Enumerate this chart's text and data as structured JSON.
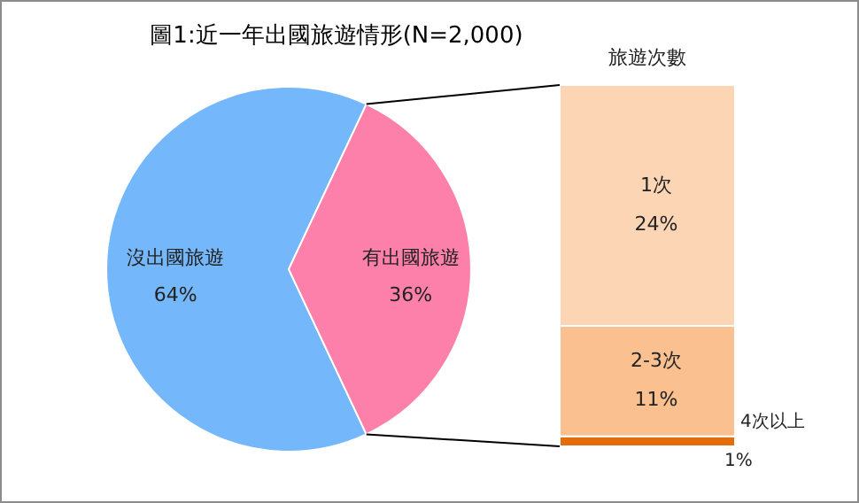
{
  "chart_data": [
    {
      "type": "pie",
      "title": "圖1:近一年出國旅遊情形(N=2,000)",
      "categories": [
        "沒出國旅遊",
        "有出國旅遊"
      ],
      "values": [
        64,
        36
      ],
      "colors": [
        "#75b7fb",
        "#fd80aa"
      ],
      "value_labels": [
        "64%",
        "36%"
      ]
    },
    {
      "type": "bar",
      "title": "旅遊次數",
      "stacked": true,
      "categories": [
        null
      ],
      "series": [
        {
          "name": "4次以上",
          "color": "#e46c0a",
          "values": [
            1
          ],
          "value_labels": [
            "1%"
          ]
        },
        {
          "name": "2-3次",
          "color": "#fac090",
          "values": [
            11
          ],
          "value_labels": [
            "11%"
          ]
        },
        {
          "name": "1次",
          "color": "#fcd5b5",
          "values": [
            24
          ],
          "value_labels": [
            "24%"
          ]
        }
      ]
    }
  ]
}
